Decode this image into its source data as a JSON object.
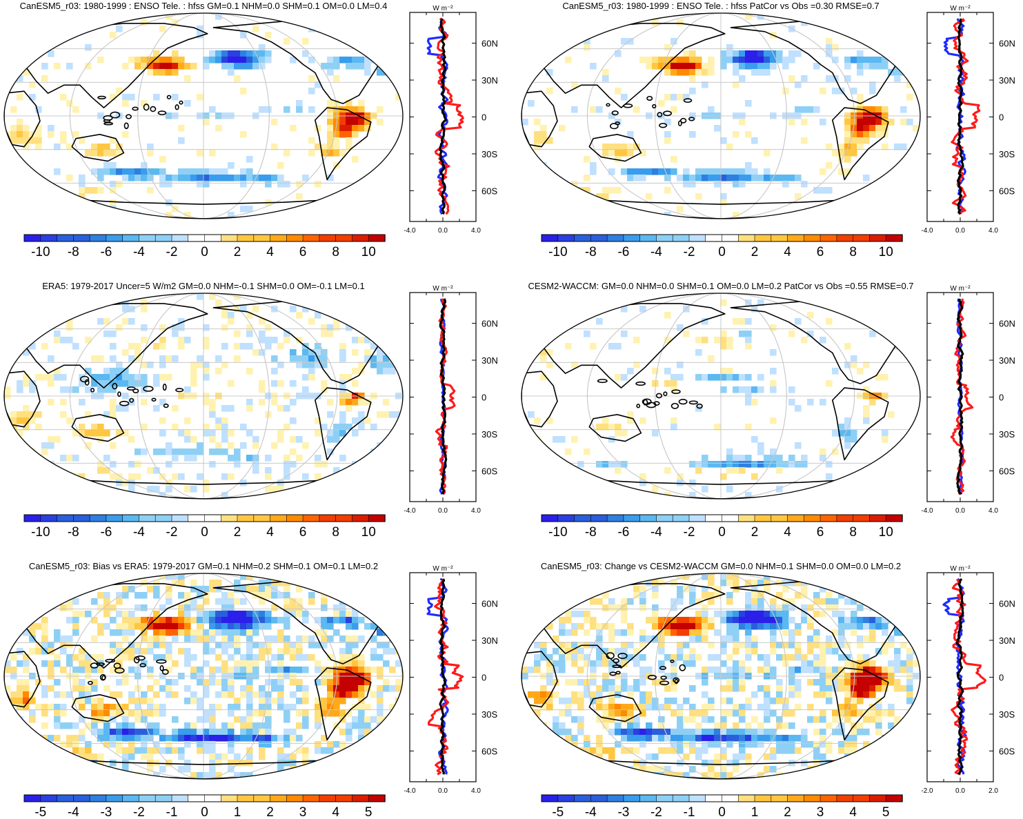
{
  "colors": {
    "warm": [
      "#ffffff",
      "#fff2b0",
      "#ffe080",
      "#ffc640",
      "#ffa91a",
      "#ff8a00",
      "#ff6400",
      "#f23e00",
      "#dc1c00",
      "#c40000"
    ],
    "cool": [
      "#ffffff",
      "#bfe0ff",
      "#8ed0f5",
      "#5bb8f0",
      "#3a9cec",
      "#2f7fe0",
      "#2a5fdc",
      "#2a40e0",
      "#2a20ea"
    ],
    "zonal_blue": "#1f2bff",
    "zonal_red": "#ff1a1a",
    "zonal_black": "#000000",
    "coast": "#000000",
    "graticule": "#c8c8c8"
  },
  "panels": [
    {
      "title": "CanESM5_r03: 1980-1999 : ENSO Tele. : hfss GM=0.1 NHM=0.0 SHM=0.1 OM=0.0 LM=0.4",
      "colorbar_labels": [
        "-10",
        "-8",
        "-6",
        "-4",
        "-2",
        "0",
        "2",
        "4",
        "6",
        "8",
        "10"
      ],
      "side_units": "W m⁻²",
      "side_xticks": [
        "-4.0",
        "0.0",
        "4.0"
      ],
      "side_yticks": [
        "60N",
        "30N",
        "0",
        "30S",
        "60S"
      ]
    },
    {
      "title": "CanESM5_r03: 1980-1999 : ENSO Tele. : hfss PatCor vs Obs =0.30 RMSE=0.7",
      "colorbar_labels": [
        "-10",
        "-8",
        "-6",
        "-4",
        "-2",
        "0",
        "2",
        "4",
        "6",
        "8",
        "10"
      ],
      "side_units": "W m⁻²",
      "side_xticks": [
        "-4.0",
        "0.0",
        "4.0"
      ],
      "side_yticks": [
        "60N",
        "30N",
        "0",
        "30S",
        "60S"
      ]
    },
    {
      "title": "ERA5: 1979-2017 Uncer=5 W/m2 GM=0.0 NHM=-0.1 SHM=0.0 OM=-0.1 LM=0.1",
      "colorbar_labels": [
        "-10",
        "-8",
        "-6",
        "-4",
        "-2",
        "0",
        "2",
        "4",
        "6",
        "8",
        "10"
      ],
      "side_units": "W m⁻²",
      "side_xticks": [
        "-4.0",
        "0.0",
        "4.0"
      ],
      "side_yticks": [
        "60N",
        "30N",
        "0",
        "30S",
        "60S"
      ]
    },
    {
      "title": "CESM2-WACCM: GM=0.0 NHM=0.0 SHM=0.1 OM=0.0 LM=0.2 PatCor vs Obs =0.55 RMSE=0.7",
      "colorbar_labels": [
        "-10",
        "-8",
        "-6",
        "-4",
        "-2",
        "0",
        "2",
        "4",
        "6",
        "8",
        "10"
      ],
      "side_units": "W m⁻²",
      "side_xticks": [
        "-4.0",
        "0.0",
        "4.0"
      ],
      "side_yticks": [
        "60N",
        "30N",
        "0",
        "30S",
        "60S"
      ]
    },
    {
      "title": "CanESM5_r03: Bias vs ERA5: 1979-2017 GM=0.1 NHM=0.2 SHM=0.1 OM=0.1 LM=0.2",
      "colorbar_labels": [
        "-5",
        "-4",
        "-3",
        "-2",
        "-1",
        "0",
        "1",
        "2",
        "3",
        "4",
        "5"
      ],
      "side_units": "W m⁻²",
      "side_xticks": [
        "-4.0",
        "0.0",
        "4.0"
      ],
      "side_yticks": [
        "60N",
        "30N",
        "0",
        "30S",
        "60S"
      ]
    },
    {
      "title": "CanESM5_r03: Change vs CESM2-WACCM GM=0.0 NHM=0.1 SHM=0.0 OM=0.0 LM=0.2",
      "colorbar_labels": [
        "-5",
        "-4",
        "-3",
        "-2",
        "-1",
        "0",
        "1",
        "2",
        "3",
        "4",
        "5"
      ],
      "side_units": "W m⁻²",
      "side_xticks": [
        "-2.0",
        "0.0",
        "2.0"
      ],
      "side_yticks": [
        "60N",
        "30N",
        "0",
        "30S",
        "60S"
      ]
    }
  ]
}
